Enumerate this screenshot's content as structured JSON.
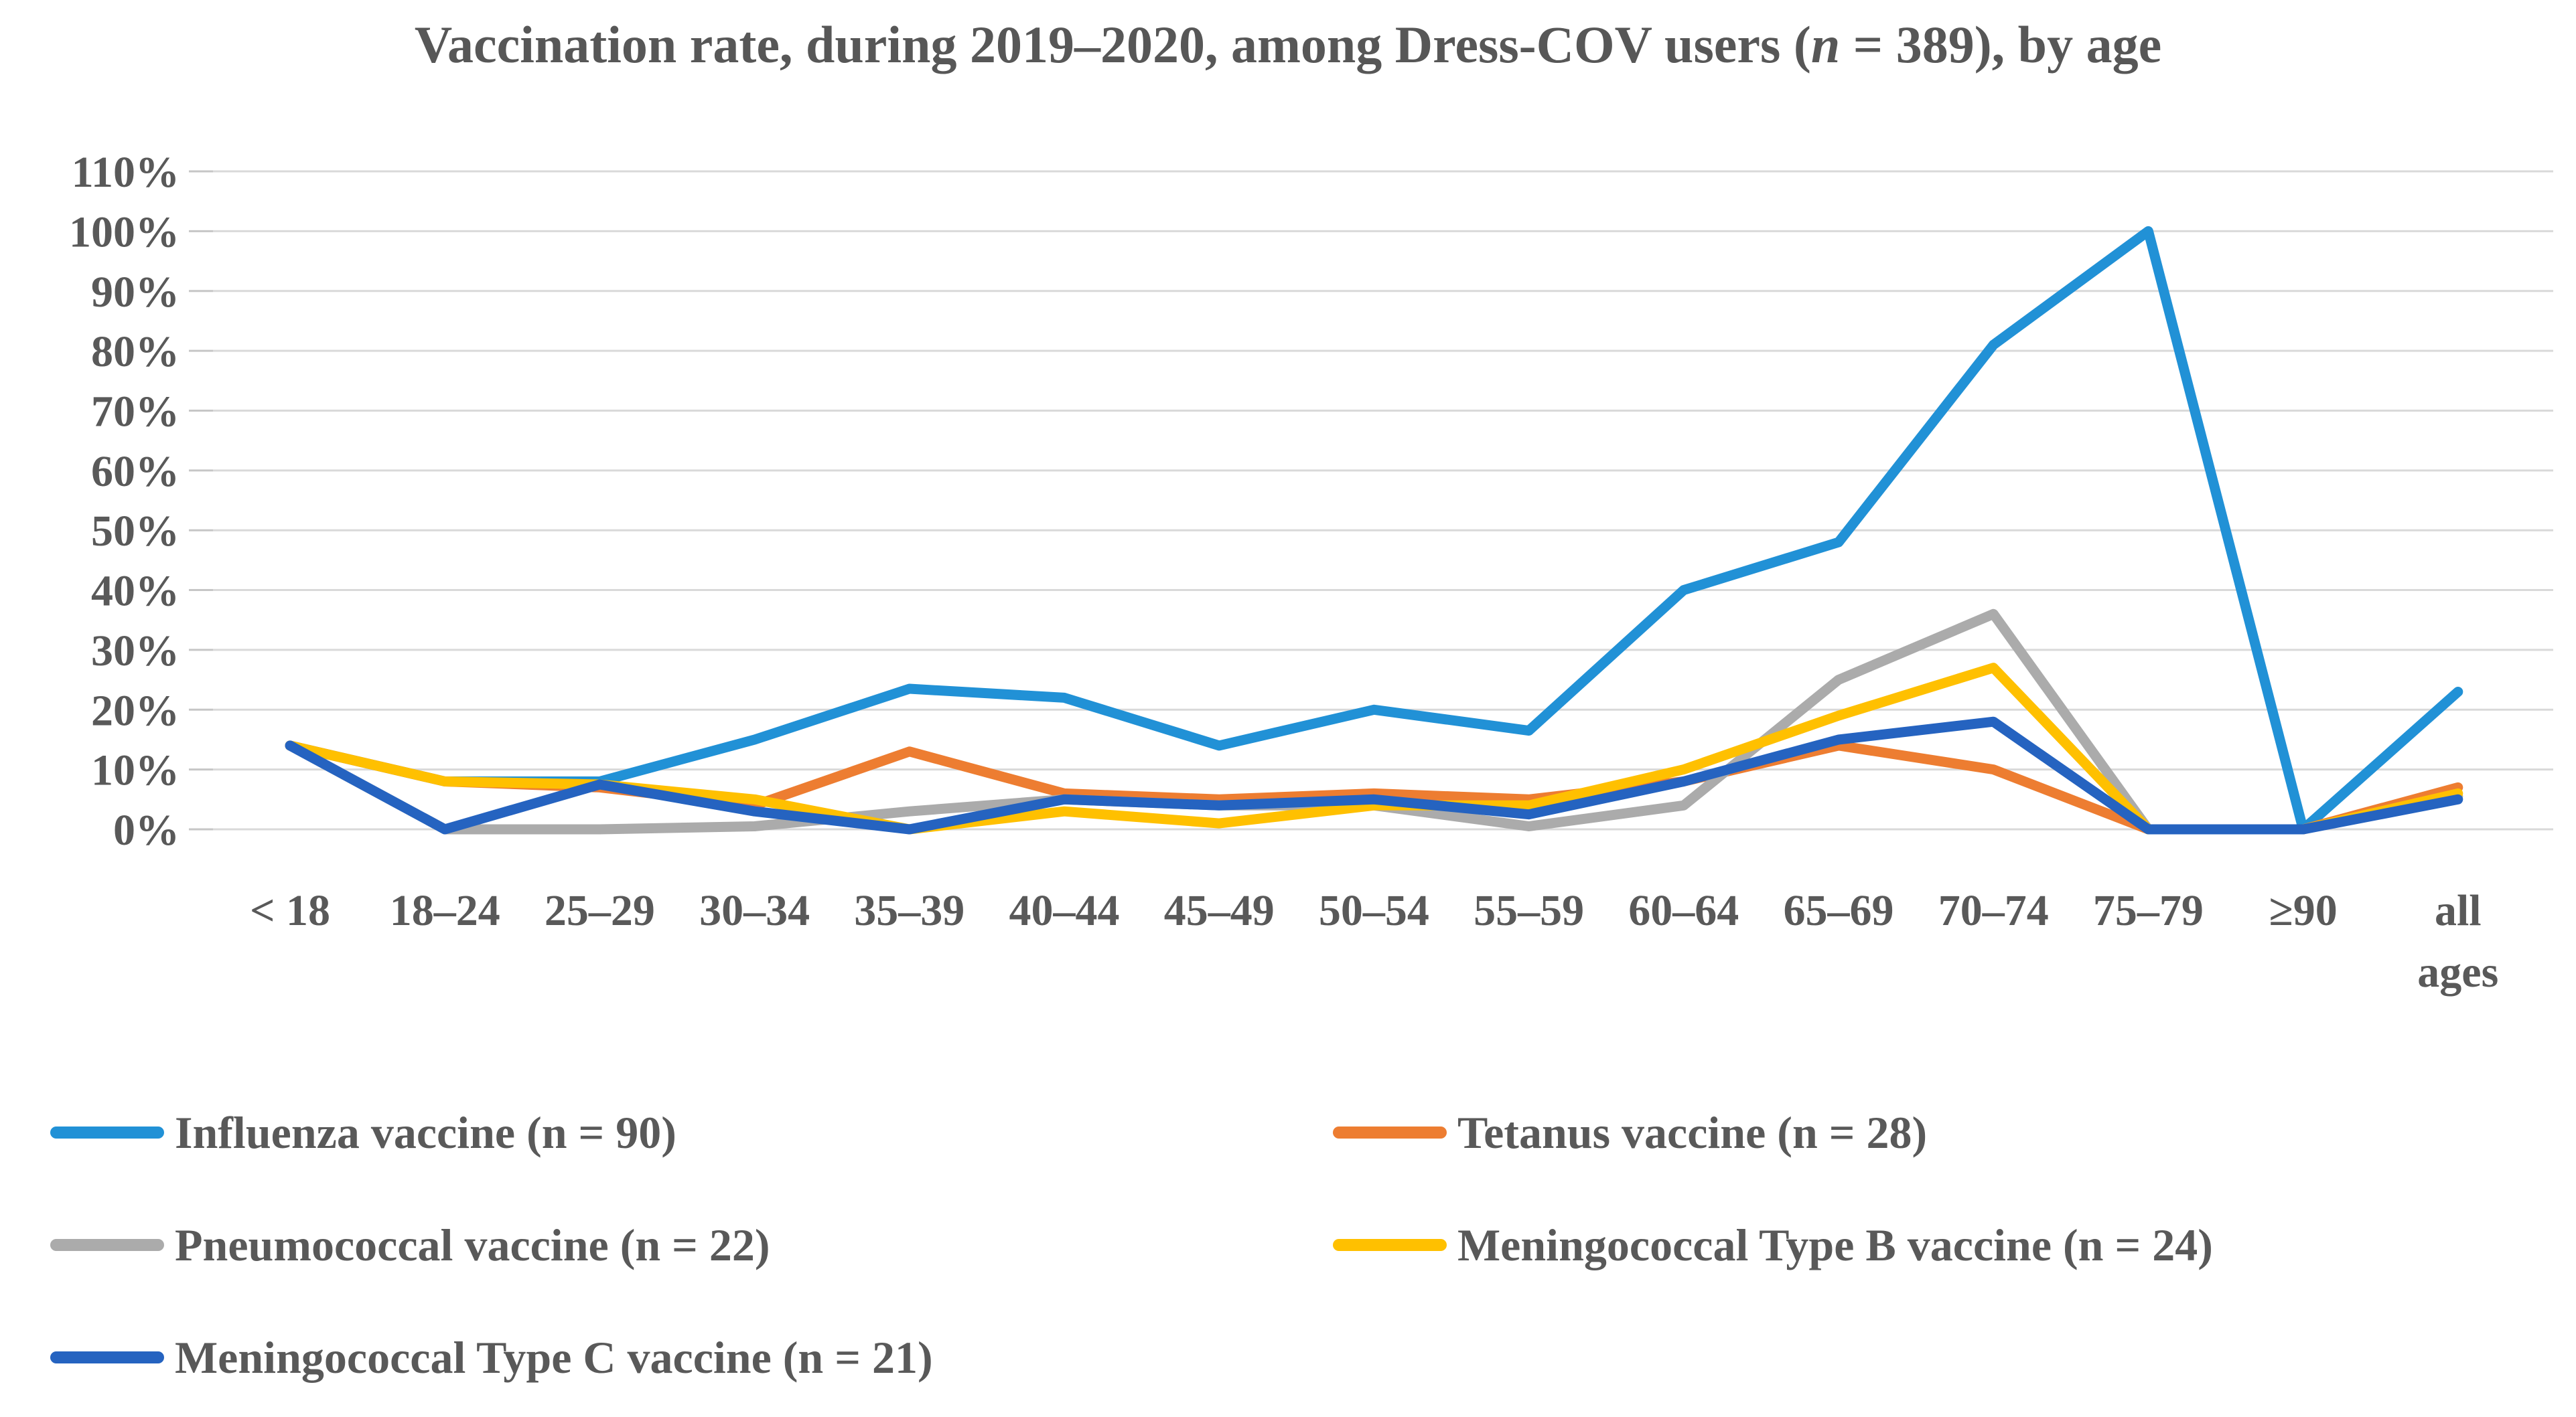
{
  "title": {
    "prefix": "Vaccination rate, during 2019–2020, among Dress-COV users (",
    "n_italic": "n",
    "suffix": " = 389), by age"
  },
  "colors": {
    "grid": "#D9D9D9",
    "tick": "#C6C6C6",
    "axis_text": "#595959",
    "title_text": "#575757",
    "background": "#FFFFFF"
  },
  "chart_data": {
    "type": "line",
    "title": "Vaccination rate, during 2019–2020, among Dress-COV users (n = 389), by age",
    "xlabel": "",
    "ylabel": "",
    "ylim": [
      0,
      110
    ],
    "y_tick_step": 10,
    "y_tick_labels": [
      "0%",
      "10%",
      "20%",
      "30%",
      "40%",
      "50%",
      "60%",
      "70%",
      "80%",
      "90%",
      "100%",
      "110%"
    ],
    "grid": true,
    "legend_position": "bottom",
    "categories": [
      "< 18",
      "18–24",
      "25–29",
      "30–34",
      "35–39",
      "40–44",
      "45–49",
      "50–54",
      "55–59",
      "60–64",
      "65–69",
      "70–74",
      "75–79",
      "≥90",
      "all\nages"
    ],
    "series": [
      {
        "label": "Influenza vaccine (n = 90)",
        "color": "#2191D6",
        "values": [
          14,
          8,
          8,
          15,
          23.5,
          22,
          14,
          20,
          16.5,
          40,
          48,
          81,
          100,
          0,
          23
        ]
      },
      {
        "label": "Tetanus vaccine (n = 28)",
        "color": "#ED7D31",
        "values": [
          14,
          8,
          7,
          4,
          13,
          6,
          5,
          6,
          5,
          8,
          14,
          10,
          0,
          0,
          7
        ]
      },
      {
        "label": "Pneumococcal vaccine (n = 22)",
        "color": "#ABABAB",
        "values": [
          14,
          0,
          0,
          0.5,
          3,
          5,
          4,
          4,
          0.5,
          4,
          25,
          36,
          0,
          0,
          5.5
        ]
      },
      {
        "label": "Meningococcal Type B vaccine (n = 24)",
        "color": "#FFC000",
        "values": [
          14,
          8,
          7.5,
          5,
          0,
          3,
          1,
          4,
          4,
          10,
          19,
          27,
          0,
          0,
          6
        ]
      },
      {
        "label": "Meningococcal Type C vaccine (n = 21)",
        "color": "#2563C0",
        "values": [
          14,
          0,
          7.5,
          3,
          0,
          5,
          4,
          5,
          2.5,
          8,
          15,
          18,
          0,
          0,
          5
        ]
      }
    ]
  }
}
